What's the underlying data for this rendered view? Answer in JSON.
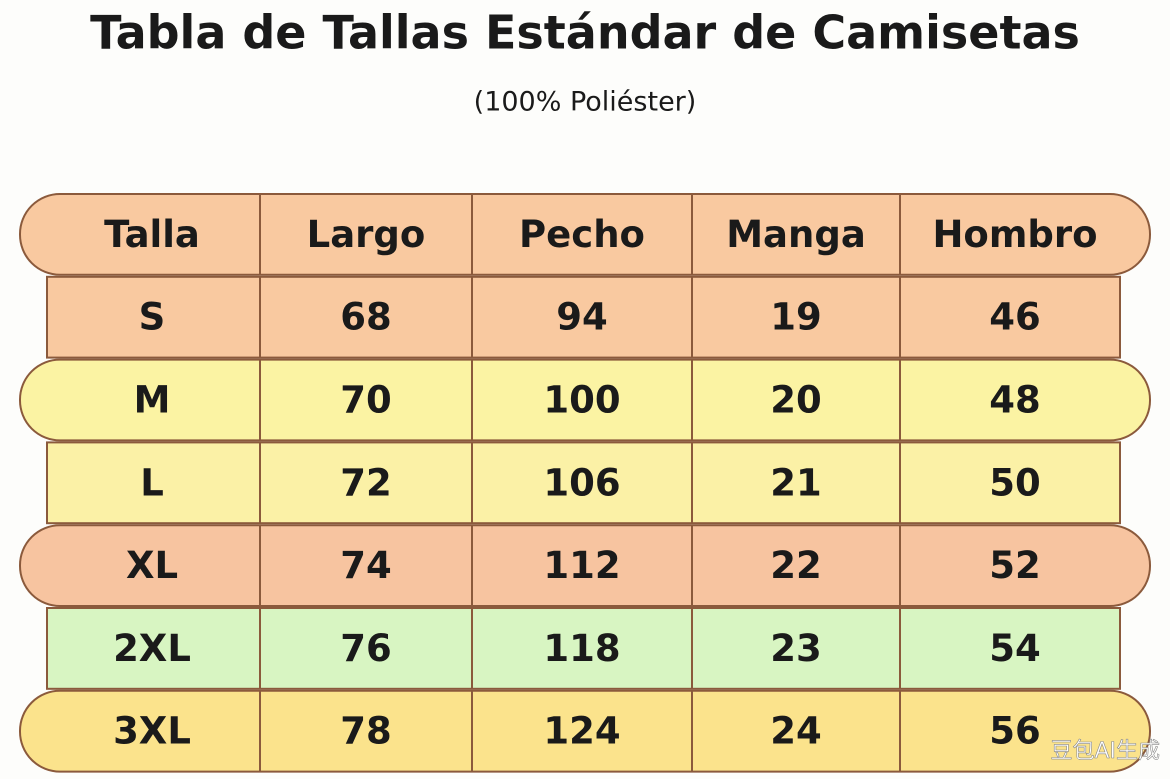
{
  "header": {
    "title": "Tabla de Tallas Estándar de Camisetas",
    "subtitle": "(100% Poliéster)"
  },
  "table": {
    "columns": [
      "Talla",
      "Largo",
      "Pecho",
      "Manga",
      "Hombro"
    ],
    "rows": [
      [
        "S",
        68,
        94,
        19,
        46
      ],
      [
        "M",
        70,
        100,
        20,
        48
      ],
      [
        "L",
        72,
        106,
        21,
        50
      ],
      [
        "XL",
        74,
        112,
        22,
        52
      ],
      [
        "2XL",
        76,
        118,
        23,
        54
      ],
      [
        "3XL",
        78,
        124,
        24,
        56
      ]
    ]
  },
  "watermark": "豆包AI生成"
}
